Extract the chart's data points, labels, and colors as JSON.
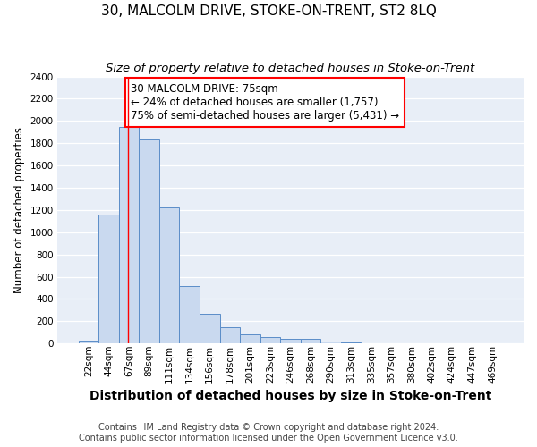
{
  "title": "30, MALCOLM DRIVE, STOKE-ON-TRENT, ST2 8LQ",
  "subtitle": "Size of property relative to detached houses in Stoke-on-Trent",
  "xlabel": "Distribution of detached houses by size in Stoke-on-Trent",
  "ylabel": "Number of detached properties",
  "categories": [
    "22sqm",
    "44sqm",
    "67sqm",
    "89sqm",
    "111sqm",
    "134sqm",
    "156sqm",
    "178sqm",
    "201sqm",
    "223sqm",
    "246sqm",
    "268sqm",
    "290sqm",
    "313sqm",
    "335sqm",
    "357sqm",
    "380sqm",
    "402sqm",
    "424sqm",
    "447sqm",
    "469sqm"
  ],
  "values": [
    25,
    1155,
    1950,
    1830,
    1225,
    515,
    265,
    145,
    80,
    55,
    45,
    38,
    20,
    10,
    5,
    5,
    3,
    2,
    2,
    2,
    2
  ],
  "bar_color": "#c9d9ef",
  "bar_edge_color": "#5b8dc8",
  "red_line_x": 1.97,
  "annotation_text": "30 MALCOLM DRIVE: 75sqm\n← 24% of detached houses are smaller (1,757)\n75% of semi-detached houses are larger (5,431) →",
  "annotation_box_color": "white",
  "annotation_box_edge_color": "red",
  "ylim": [
    0,
    2400
  ],
  "yticks": [
    0,
    200,
    400,
    600,
    800,
    1000,
    1200,
    1400,
    1600,
    1800,
    2000,
    2200,
    2400
  ],
  "footer_line1": "Contains HM Land Registry data © Crown copyright and database right 2024.",
  "footer_line2": "Contains public sector information licensed under the Open Government Licence v3.0.",
  "fig_background_color": "#ffffff",
  "plot_background_color": "#e8eef7",
  "grid_color": "#ffffff",
  "title_fontsize": 11,
  "subtitle_fontsize": 9.5,
  "xlabel_fontsize": 10,
  "ylabel_fontsize": 8.5,
  "tick_fontsize": 7.5,
  "annotation_fontsize": 8.5,
  "footer_fontsize": 7
}
